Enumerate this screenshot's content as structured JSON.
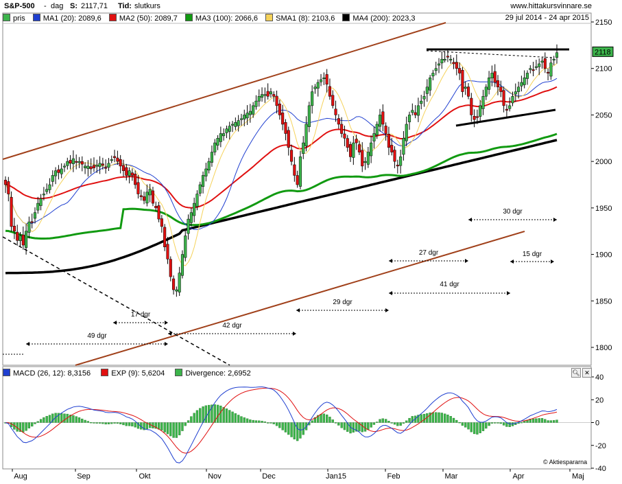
{
  "header": {
    "symbol": "S&P-500",
    "period_sep": "-",
    "period": "dag",
    "close_label": "S:",
    "close_value": "2117,71",
    "time_label": "Tid:",
    "time_value": "slutkurs",
    "site": "www.hittakursvinnare.se"
  },
  "legend": {
    "items": [
      {
        "label": "pris",
        "color": "#3cb44b"
      },
      {
        "label": "MA1 (20): 2089,6",
        "color": "#1f3fd0"
      },
      {
        "label": "MA2 (50): 2089,7",
        "color": "#e01010"
      },
      {
        "label": "MA3 (100): 2066,6",
        "color": "#119a11"
      },
      {
        "label": "SMA1 (8): 2103,6",
        "color": "#f5d25a"
      },
      {
        "label": "MA4 (200): 2023,3",
        "color": "#000000"
      }
    ],
    "date_range": "29 jul 2014 - 24 apr 2015"
  },
  "macd_legend": {
    "items": [
      {
        "label": "MACD (26, 12): 8,3156",
        "color": "#1f3fd0"
      },
      {
        "label": "EXP (9): 5,6204",
        "color": "#e01010"
      },
      {
        "label": "Divergence: 2,6952",
        "color": "#3cb44b"
      }
    ]
  },
  "copyright": "© Aktiespararna",
  "chart_data": [
    {
      "type": "candlestick",
      "title": "S&P-500",
      "x_tick_labels": [
        "Aug",
        "Sep",
        "Okt",
        "Nov",
        "Dec",
        "Jan15",
        "Feb",
        "Mar",
        "Apr",
        "Maj"
      ],
      "y_tick_labels": [
        "2150",
        "2100",
        "2050",
        "2000",
        "1950",
        "1900",
        "1850",
        "1800"
      ],
      "ylim": [
        1780,
        2150
      ],
      "last_price_label": "2118",
      "close_approx": [
        1975,
        1965,
        1930,
        1925,
        1915,
        1920,
        1910,
        1925,
        1935,
        1935,
        1945,
        1955,
        1960,
        1965,
        1970,
        1975,
        1985,
        1990,
        1988,
        1992,
        1995,
        2000,
        1998,
        2003,
        2000,
        2000,
        1997,
        1995,
        1995,
        1992,
        1993,
        1996,
        1998,
        1996,
        1993,
        1998,
        2002,
        2004,
        2000,
        1995,
        1990,
        1985,
        1990,
        1985,
        1975,
        1965,
        1962,
        1958,
        1967,
        1970,
        1955,
        1950,
        1938,
        1930,
        1908,
        1895,
        1876,
        1862,
        1862,
        1880,
        1900,
        1920,
        1938,
        1945,
        1955,
        1965,
        1975,
        1985,
        1992,
        2000,
        2010,
        2020,
        2025,
        2030,
        2030,
        2035,
        2038,
        2040,
        2042,
        2044,
        2046,
        2050,
        2052,
        2054,
        2060,
        2065,
        2070,
        2072,
        2072,
        2070,
        2075,
        2070,
        2060,
        2050,
        2040,
        2030,
        2015,
        2000,
        1985,
        1975,
        2005,
        2020,
        2040,
        2060,
        2075,
        2080,
        2085,
        2088,
        2090,
        2083,
        2070,
        2060,
        2050,
        2040,
        2030,
        2025,
        2015,
        2005,
        2020,
        2020,
        2010,
        1995,
        2000,
        2010,
        2020,
        2030,
        2040,
        2050,
        2040,
        2030,
        2015,
        2010,
        2000,
        1995,
        2005,
        2025,
        2040,
        2050,
        2055,
        2050,
        2060,
        2065,
        2070,
        2080,
        2090,
        2095,
        2100,
        2105,
        2110,
        2110,
        2113,
        2110,
        2105,
        2100,
        2095,
        2075,
        2080,
        2070,
        2050,
        2045,
        2048,
        2060,
        2070,
        2080,
        2090,
        2095,
        2085,
        2080,
        2075,
        2060,
        2055,
        2060,
        2070,
        2075,
        2080,
        2085,
        2090,
        2095,
        2100,
        2098,
        2102,
        2105,
        2108,
        2100,
        2095,
        2106,
        2110,
        2117
      ]
    },
    {
      "type": "line",
      "title": "MACD (26, 12)",
      "series": [
        {
          "name": "MACD (26, 12)",
          "last": 8.3156
        },
        {
          "name": "EXP (9)",
          "last": 5.6204
        },
        {
          "name": "Divergence",
          "last": 2.6952
        }
      ],
      "y_tick_labels": [
        "40",
        "20",
        "0",
        "-20",
        "-40"
      ],
      "ylim": [
        -40,
        40
      ]
    }
  ],
  "annotations": [
    "49 dgr",
    "17 dgr",
    "42 dgr",
    "29 dgr",
    "27 dgr",
    "41 dgr",
    "30 dgr",
    "15 dgr"
  ]
}
